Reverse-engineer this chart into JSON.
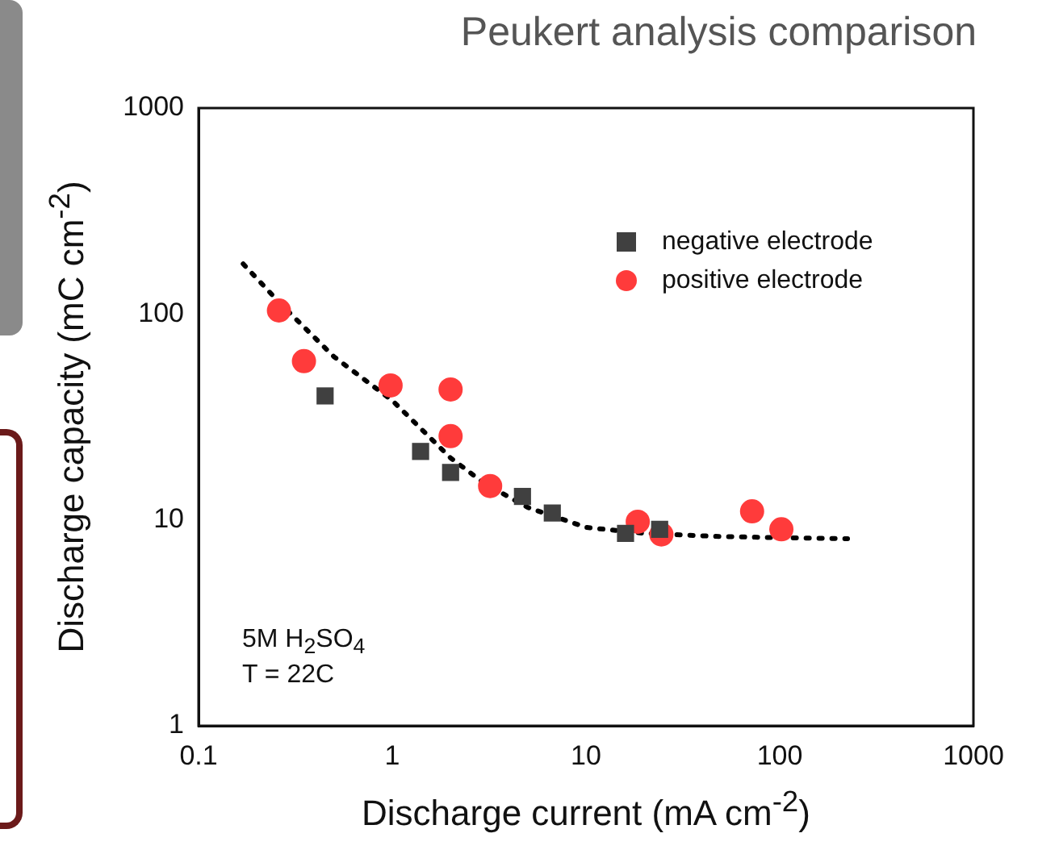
{
  "chart_data": {
    "type": "scatter",
    "title": "Peukert analysis comparison",
    "xlabel": "Discharge current (mA cm$^{-2}$)",
    "ylabel": "Discharge capacity (mC cm$^{-2}$)",
    "log": "xy",
    "xlim": [
      0.1,
      1000
    ],
    "ylim": [
      1,
      1000
    ],
    "xticks": [
      0.1,
      1,
      10,
      100,
      1000
    ],
    "yticks": [
      1,
      10,
      100,
      1000
    ],
    "grid": false,
    "legend": "top right",
    "annotations": [
      "5M H$_{2}$SO$_{4}$",
      "T = 22C"
    ],
    "series": [
      {
        "name": "negative electrode",
        "color": "#404040",
        "marker": "square",
        "x": [
          0.45,
          1.4,
          2,
          4.7,
          6.7,
          16,
          24
        ],
        "values": [
          40,
          21.5,
          17,
          13,
          10.8,
          8.6,
          9
        ]
      },
      {
        "name": "positive electrode",
        "color": "#ff3b3b",
        "marker": "circle",
        "x": [
          0.26,
          0.35,
          0.98,
          2,
          2,
          3.2,
          18.5,
          24.5,
          72,
          102
        ],
        "values": [
          104,
          59,
          45,
          43,
          25.5,
          14.6,
          9.8,
          8.5,
          11,
          9
        ]
      },
      {
        "type": "line",
        "color": "#000000",
        "marker": "none",
        "line_style": "dotted",
        "x": [
          0.17,
          0.27,
          0.5,
          1,
          2,
          3,
          5,
          10,
          20,
          50,
          100,
          224
        ],
        "values": [
          175,
          110,
          62,
          38,
          20,
          15,
          11.5,
          9.2,
          8.6,
          8.3,
          8.2,
          8.1
        ]
      }
    ]
  }
}
